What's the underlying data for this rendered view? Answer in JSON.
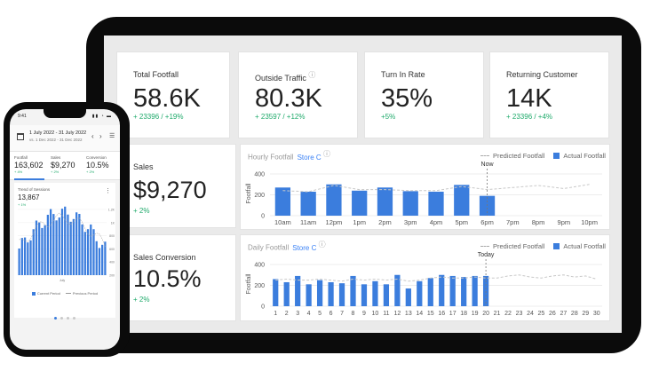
{
  "kpis": [
    {
      "title": "Total Footfall",
      "value": "58.6K",
      "delta": "+ 23396 / +19%",
      "info": false
    },
    {
      "title": "Outside Traffic",
      "value": "80.3K",
      "delta": "+ 23597 / +12%",
      "info": true
    },
    {
      "title": "Turn In Rate",
      "value": "35%",
      "delta": "+5%",
      "info": false
    },
    {
      "title": "Returning Customer",
      "value": "14K",
      "delta": "+ 23396 / +4%",
      "info": false
    }
  ],
  "sales": {
    "title": "Sales",
    "value": "$9,270",
    "delta": "+ 2%"
  },
  "conversion": {
    "title": "Sales Conversion",
    "value": "10.5%",
    "delta": "+ 2%"
  },
  "hourly_chart": {
    "title": "Hourly Footfall",
    "store": "Store C",
    "legend_predicted": "Predicted Footfall",
    "legend_actual": "Actual Footfall",
    "marker_label": "Now",
    "ylabel": "Footfall"
  },
  "daily_chart": {
    "title": "Daily Footfall",
    "store": "Store C",
    "legend_predicted": "Predicted Footfall",
    "legend_actual": "Actual Footfall",
    "marker_label": "Today",
    "ylabel": "Footfall"
  },
  "colors": {
    "bar": "#3b7ddd",
    "positive": "#1faa6b",
    "accent": "#3b82f6"
  },
  "chart_data": [
    {
      "type": "bar",
      "title": "Hourly Footfall",
      "ylabel": "Footfall",
      "ylim": [
        0,
        400
      ],
      "yticks": [
        0,
        200,
        400
      ],
      "categories": [
        "10am",
        "11am",
        "12pm",
        "1pm",
        "2pm",
        "3pm",
        "4pm",
        "5pm",
        "6pm",
        "7pm",
        "8pm",
        "9pm",
        "10pm"
      ],
      "series": [
        {
          "name": "Actual Footfall",
          "values": [
            270,
            230,
            300,
            240,
            270,
            235,
            230,
            295,
            190,
            null,
            null,
            null,
            null
          ]
        },
        {
          "name": "Predicted Footfall",
          "values": [
            240,
            230,
            290,
            250,
            250,
            240,
            240,
            280,
            250,
            270,
            290,
            260,
            300
          ]
        }
      ],
      "marker": {
        "label": "Now",
        "at": "6pm"
      }
    },
    {
      "type": "bar",
      "title": "Daily Footfall",
      "ylabel": "Footfall",
      "ylim": [
        0,
        400
      ],
      "yticks": [
        0,
        200,
        400
      ],
      "categories": [
        "1",
        "2",
        "3",
        "4",
        "5",
        "6",
        "7",
        "8",
        "9",
        "10",
        "11",
        "12",
        "13",
        "14",
        "15",
        "16",
        "17",
        "18",
        "19",
        "20",
        "21",
        "22",
        "23",
        "24",
        "25",
        "26",
        "27",
        "28",
        "29",
        "30"
      ],
      "series": [
        {
          "name": "Actual Footfall",
          "values": [
            260,
            230,
            290,
            210,
            250,
            230,
            220,
            290,
            210,
            240,
            210,
            300,
            170,
            240,
            270,
            300,
            290,
            280,
            290,
            290,
            null,
            null,
            null,
            null,
            null,
            null,
            null,
            null,
            null,
            null
          ]
        },
        {
          "name": "Predicted Footfall",
          "values": [
            250,
            260,
            250,
            250,
            260,
            250,
            240,
            260,
            250,
            260,
            250,
            260,
            240,
            250,
            270,
            280,
            270,
            270,
            280,
            270,
            270,
            290,
            300,
            280,
            270,
            290,
            300,
            280,
            290,
            260
          ]
        }
      ],
      "marker": {
        "label": "Today",
        "at": "20"
      }
    },
    {
      "type": "bar",
      "title": "Trend of Sessions",
      "yticks": [
        "1.2K",
        "1K",
        "800",
        "600",
        "400",
        "200"
      ],
      "xlabel": "July",
      "series_names": [
        "Current Period",
        "Previous Period"
      ]
    }
  ],
  "phone": {
    "time": "9:41",
    "status_icons": "▮▮ ◔ ▬",
    "date_range": "1 July 2022 - 31 July 2022",
    "compare_range": "vs. 1 Dec 2022 - 31 Dec 2022",
    "nav_prev": "‹",
    "nav_next": "›",
    "menu": "☰",
    "metrics": [
      {
        "label": "Footfall",
        "value": "163,602",
        "delta": "+ 4%"
      },
      {
        "label": "Sales",
        "value": "$9,270",
        "delta": "+ 2%"
      },
      {
        "label": "Conversion",
        "value": "10.5%",
        "delta": "+ 2%"
      }
    ],
    "chart_title": "Trend of Sessions",
    "chart_value": "13,867",
    "chart_delta": "+ 1%",
    "kebab": "⋮",
    "legend_current": "Current Period",
    "legend_previous": "Previous Period",
    "x_label": "July"
  }
}
